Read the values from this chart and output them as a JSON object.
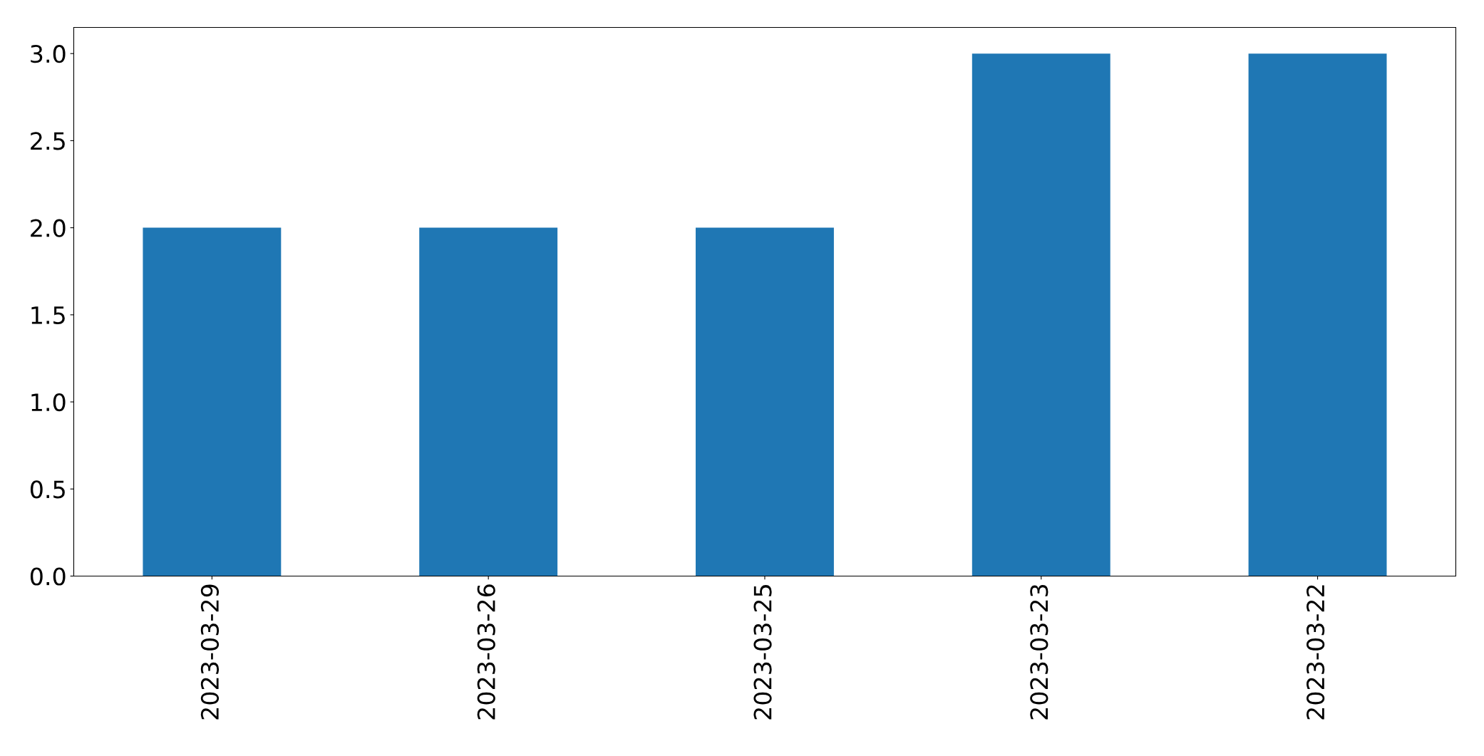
{
  "chart_data": {
    "type": "bar",
    "categories": [
      "2023-03-29",
      "2023-03-26",
      "2023-03-25",
      "2023-03-23",
      "2023-03-22"
    ],
    "values": [
      2,
      2,
      2,
      3,
      3
    ],
    "color": "#1f77b4",
    "ylim": [
      0,
      3.15
    ],
    "yticks": [
      {
        "value": 0,
        "label": "0.0"
      },
      {
        "value": 0.5,
        "label": "0.5"
      },
      {
        "value": 1,
        "label": "1.0"
      },
      {
        "value": 1.5,
        "label": "1.5"
      },
      {
        "value": 2,
        "label": "2.0"
      },
      {
        "value": 2.5,
        "label": "2.5"
      },
      {
        "value": 3,
        "label": "3.0"
      }
    ],
    "grid": false
  }
}
